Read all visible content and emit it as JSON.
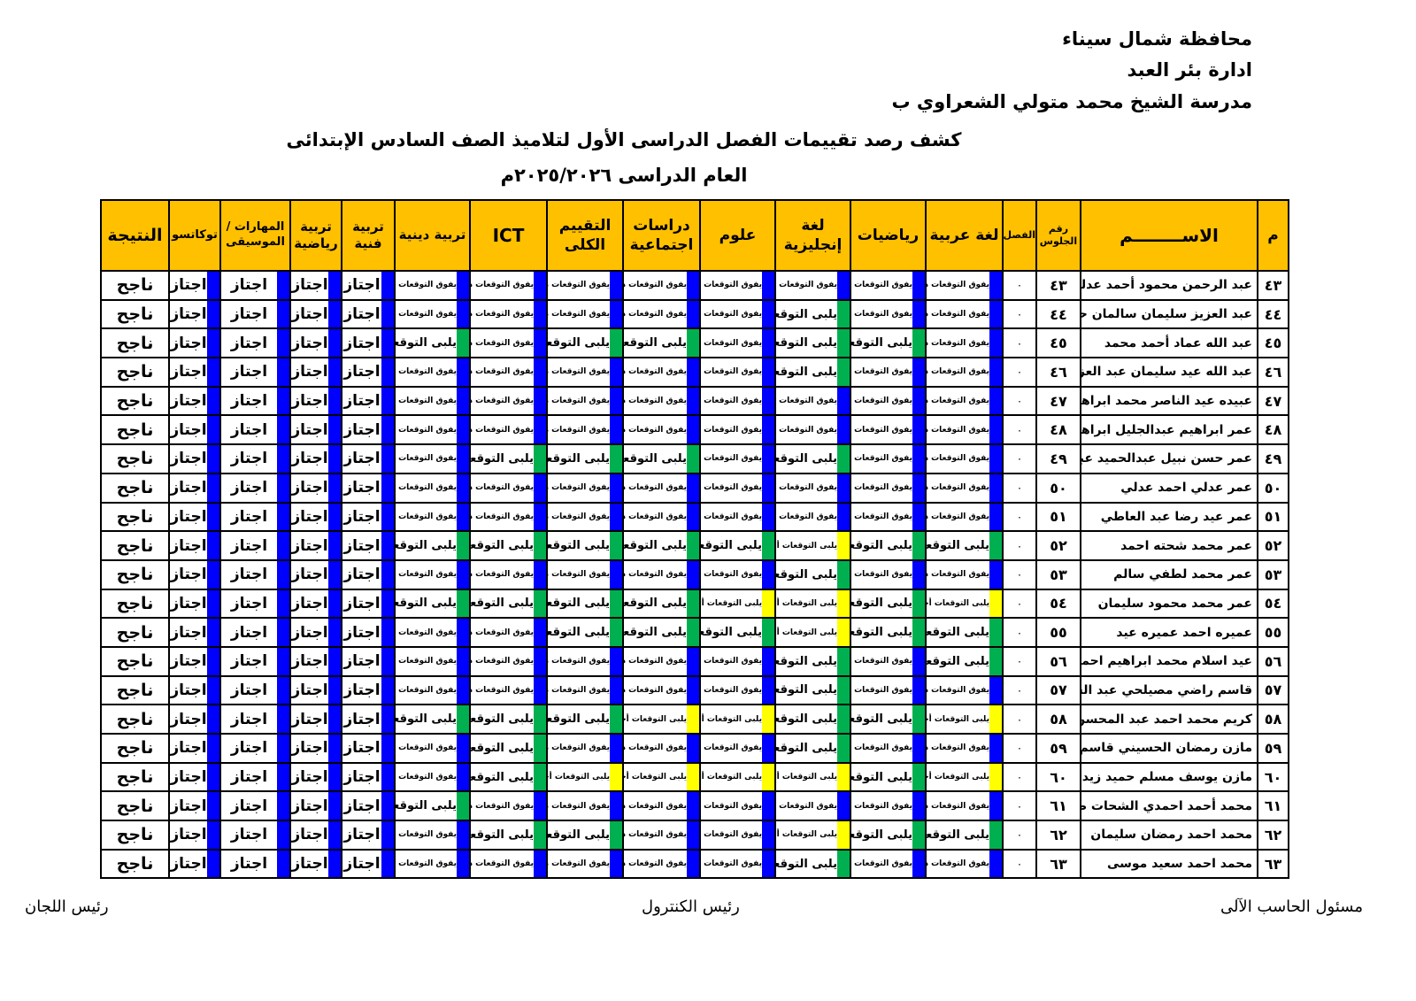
{
  "header": {
    "governorate": "محافظة شمال سيناء",
    "administration": "ادارة بئر العبد",
    "school": "مدرسة الشيخ محمد متولي الشعراوي ب",
    "title": "كشف رصد تقييمات الفصل الدراسى الأول لتلاميذ الصف السادس الإبتدائى",
    "year": "العام الدراسى ٢٠٢٥/٢٠٢٦م"
  },
  "columns": {
    "index": "م",
    "name": "الاســــــــم",
    "seat": "رقم الجلوس",
    "class": "الفصل",
    "arabic": "لغة عربية",
    "math": "رياضيات",
    "english": "لغة إنجليزية",
    "science": "علوم",
    "social": "دراسات اجتماعية",
    "overall": "التقييم الكلى",
    "ict": "ICT",
    "religion": "تربية دينية",
    "art": "تربية فنية",
    "sport": "تربية رياضية",
    "music": "المهارات / الموسيقى",
    "tokkatsu": "توكاتسو",
    "result": "النتيجة"
  },
  "ratings": {
    "D": {
      "label": "يفوق التوقعات دائماً",
      "color": "#0000FF"
    },
    "L": {
      "label": "يلبى التوقعات",
      "color": "#00B050"
    },
    "A": {
      "label": "يلبى التوقعات أحياناً",
      "color": "#FFFF00"
    }
  },
  "pass_label": "اجتاز",
  "pass_color": "#0000FF",
  "header_color": "#FFC000",
  "rows": [
    {
      "index": "٤٣",
      "name": "عبد الرحمن محمود أحمد عدلي",
      "seat": "٤٣",
      "class": "٠",
      "grades": [
        "D",
        "D",
        "D",
        "D",
        "D",
        "D",
        "D",
        "D"
      ],
      "result": "ناجح"
    },
    {
      "index": "٤٤",
      "name": "عبد العزيز سليمان سالمان حسن عمرو",
      "seat": "٤٤",
      "class": "٠",
      "grades": [
        "D",
        "D",
        "L",
        "D",
        "D",
        "D",
        "D",
        "D"
      ],
      "result": "ناجح"
    },
    {
      "index": "٤٥",
      "name": "عبد الله عماد أحمد محمد",
      "seat": "٤٥",
      "class": "٠",
      "grades": [
        "D",
        "L",
        "L",
        "D",
        "L",
        "L",
        "D",
        "L"
      ],
      "result": "ناجح"
    },
    {
      "index": "٤٦",
      "name": "عبد الله عيد سليمان عبد العزيز",
      "seat": "٤٦",
      "class": "٠",
      "grades": [
        "D",
        "D",
        "L",
        "D",
        "D",
        "D",
        "D",
        "D"
      ],
      "result": "ناجح"
    },
    {
      "index": "٤٧",
      "name": "عبيده عيد الناصر محمد ابراهيم",
      "seat": "٤٧",
      "class": "٠",
      "grades": [
        "D",
        "D",
        "D",
        "D",
        "D",
        "D",
        "D",
        "D"
      ],
      "result": "ناجح"
    },
    {
      "index": "٤٨",
      "name": "عمر ابراهيم عبدالجليل ابراهيم",
      "seat": "٤٨",
      "class": "٠",
      "grades": [
        "D",
        "D",
        "D",
        "D",
        "D",
        "D",
        "D",
        "D"
      ],
      "result": "ناجح"
    },
    {
      "index": "٤٩",
      "name": "عمر حسن نبيل عبدالحميد عبدالسلام",
      "seat": "٤٩",
      "class": "٠",
      "grades": [
        "D",
        "D",
        "L",
        "D",
        "L",
        "L",
        "L",
        "D"
      ],
      "result": "ناجح"
    },
    {
      "index": "٥٠",
      "name": "عمر عدلي احمد عدلي",
      "seat": "٥٠",
      "class": "٠",
      "grades": [
        "D",
        "D",
        "D",
        "D",
        "D",
        "D",
        "D",
        "D"
      ],
      "result": "ناجح"
    },
    {
      "index": "٥١",
      "name": "عمر عيد رضا عبد العاطي",
      "seat": "٥١",
      "class": "٠",
      "grades": [
        "D",
        "D",
        "D",
        "D",
        "D",
        "D",
        "D",
        "D"
      ],
      "result": "ناجح"
    },
    {
      "index": "٥٢",
      "name": "عمر محمد شحته احمد",
      "seat": "٥٢",
      "class": "٠",
      "grades": [
        "L",
        "L",
        "A",
        "L",
        "L",
        "L",
        "L",
        "L"
      ],
      "result": "ناجح"
    },
    {
      "index": "٥٣",
      "name": "عمر محمد لطفي سالم",
      "seat": "٥٣",
      "class": "٠",
      "grades": [
        "D",
        "D",
        "L",
        "D",
        "D",
        "D",
        "D",
        "D"
      ],
      "result": "ناجح"
    },
    {
      "index": "٥٤",
      "name": "عمر محمد محمود سليمان",
      "seat": "٥٤",
      "class": "٠",
      "grades": [
        "A",
        "L",
        "A",
        "A",
        "L",
        "L",
        "L",
        "L"
      ],
      "result": "ناجح"
    },
    {
      "index": "٥٥",
      "name": "عميره احمد عميره عيد",
      "seat": "٥٥",
      "class": "٠",
      "grades": [
        "L",
        "L",
        "A",
        "L",
        "L",
        "L",
        "D",
        "D"
      ],
      "result": "ناجح"
    },
    {
      "index": "٥٦",
      "name": "عيد اسلام محمد ابراهيم احمد",
      "seat": "٥٦",
      "class": "٠",
      "grades": [
        "L",
        "D",
        "L",
        "D",
        "D",
        "D",
        "D",
        "D"
      ],
      "result": "ناجح"
    },
    {
      "index": "٥٧",
      "name": "قاسم راضي مصيلحي عبد السيد",
      "seat": "٥٧",
      "class": "٠",
      "grades": [
        "D",
        "D",
        "L",
        "D",
        "D",
        "D",
        "D",
        "D"
      ],
      "result": "ناجح"
    },
    {
      "index": "٥٨",
      "name": "كريم محمد احمد عبد المحسن",
      "seat": "٥٨",
      "class": "٠",
      "grades": [
        "A",
        "L",
        "L",
        "A",
        "A",
        "L",
        "L",
        "L"
      ],
      "result": "ناجح"
    },
    {
      "index": "٥٩",
      "name": "مازن رمضان الحسيني قاسم",
      "seat": "٥٩",
      "class": "٠",
      "grades": [
        "D",
        "D",
        "L",
        "D",
        "D",
        "D",
        "L",
        "D"
      ],
      "result": "ناجح"
    },
    {
      "index": "٦٠",
      "name": "مازن يوسف مسلم حميد زيدان",
      "seat": "٦٠",
      "class": "٠",
      "grades": [
        "A",
        "L",
        "A",
        "A",
        "A",
        "A",
        "L",
        "D"
      ],
      "result": "ناجح"
    },
    {
      "index": "٦١",
      "name": "محمد أحمد احمدي الشحات طنطاوي",
      "seat": "٦١",
      "class": "٠",
      "grades": [
        "D",
        "D",
        "D",
        "D",
        "D",
        "D",
        "D",
        "L"
      ],
      "result": "ناجح"
    },
    {
      "index": "٦٢",
      "name": "محمد احمد رمضان سليمان",
      "seat": "٦٢",
      "class": "٠",
      "grades": [
        "L",
        "L",
        "A",
        "D",
        "D",
        "L",
        "L",
        "D"
      ],
      "result": "ناجح"
    },
    {
      "index": "٦٣",
      "name": "محمد احمد سعيد موسى",
      "seat": "٦٣",
      "class": "٠",
      "grades": [
        "D",
        "D",
        "L",
        "D",
        "D",
        "D",
        "D",
        "D"
      ],
      "result": "ناجح"
    }
  ],
  "footer": {
    "computer": "مسئول الحاسب الآلى",
    "control": "رئيس الكنترول",
    "committees": "رئيس اللجان"
  }
}
